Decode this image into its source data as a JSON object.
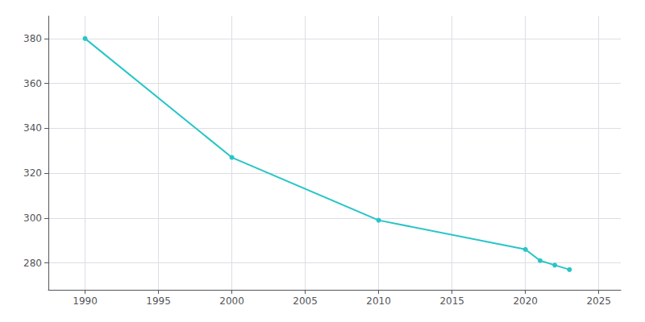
{
  "chart_data": {
    "type": "line",
    "x": [
      1990,
      2000,
      2010,
      2020,
      2021,
      2022,
      2023
    ],
    "values": [
      380,
      327,
      299,
      286,
      281,
      279,
      277
    ],
    "color": "#28c5c8",
    "marker": "circle",
    "xlim": [
      1987.5,
      2026.5
    ],
    "ylim": [
      268,
      390
    ],
    "xticks": [
      1990,
      1995,
      2000,
      2005,
      2010,
      2015,
      2020,
      2025
    ],
    "yticks": [
      280,
      300,
      320,
      340,
      360,
      380
    ],
    "grid": true
  }
}
